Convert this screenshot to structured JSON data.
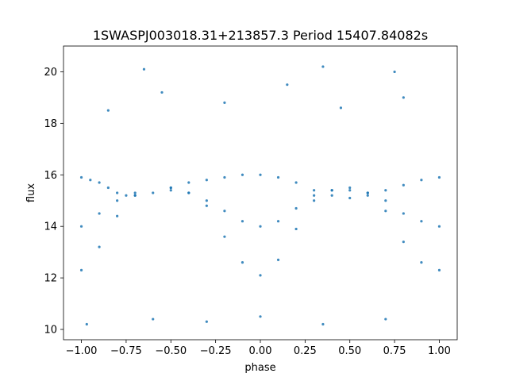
{
  "chart_data": {
    "type": "scatter",
    "title": "1SWASPJ003018.31+213857.3 Period 15407.84082s",
    "xlabel": "phase",
    "ylabel": "flux",
    "xlim": [
      -1.1,
      1.1
    ],
    "ylim": [
      9.6,
      21.0
    ],
    "xticks": [
      -1.0,
      -0.75,
      -0.5,
      -0.25,
      0.0,
      0.25,
      0.5,
      0.75,
      1.0
    ],
    "xtick_labels": [
      "−1.00",
      "−0.75",
      "−0.50",
      "−0.25",
      "0.00",
      "0.25",
      "0.50",
      "0.75",
      "1.00"
    ],
    "yticks": [
      10,
      12,
      14,
      16,
      18,
      20
    ],
    "ytick_labels": [
      "10",
      "12",
      "14",
      "16",
      "18",
      "20"
    ],
    "grid": false,
    "marker_color": "#1f77b4",
    "series": [
      {
        "points": [
          [
            -1.0,
            15.9
          ],
          [
            -0.95,
            15.8
          ],
          [
            -0.9,
            15.7
          ],
          [
            -0.85,
            15.5
          ],
          [
            -0.8,
            15.3
          ],
          [
            -0.75,
            15.2
          ],
          [
            -0.7,
            15.2
          ],
          [
            -0.6,
            15.3
          ],
          [
            -0.5,
            15.5
          ],
          [
            -0.4,
            15.7
          ],
          [
            -0.3,
            15.8
          ],
          [
            -0.2,
            15.9
          ],
          [
            -0.1,
            16.0
          ],
          [
            0.0,
            16.0
          ],
          [
            0.1,
            15.9
          ],
          [
            0.2,
            15.7
          ],
          [
            0.3,
            15.4
          ],
          [
            0.4,
            15.2
          ],
          [
            0.5,
            15.1
          ],
          [
            0.6,
            15.2
          ],
          [
            0.7,
            15.4
          ],
          [
            0.8,
            15.6
          ],
          [
            0.9,
            15.8
          ],
          [
            1.0,
            15.9
          ],
          [
            -1.0,
            14.0
          ],
          [
            -0.9,
            14.5
          ],
          [
            -0.8,
            15.0
          ],
          [
            -0.7,
            15.3
          ],
          [
            -0.5,
            15.4
          ],
          [
            -0.4,
            15.3
          ],
          [
            -0.3,
            15.0
          ],
          [
            -0.2,
            14.6
          ],
          [
            -0.1,
            14.2
          ],
          [
            0.0,
            14.0
          ],
          [
            0.1,
            14.2
          ],
          [
            0.2,
            14.7
          ],
          [
            0.3,
            15.2
          ],
          [
            0.4,
            15.4
          ],
          [
            0.5,
            15.4
          ],
          [
            0.6,
            15.3
          ],
          [
            0.7,
            15.0
          ],
          [
            0.8,
            14.5
          ],
          [
            0.9,
            14.2
          ],
          [
            1.0,
            14.0
          ],
          [
            -1.0,
            12.3
          ],
          [
            -0.9,
            13.2
          ],
          [
            -0.8,
            14.4
          ],
          [
            -0.7,
            15.2
          ],
          [
            -0.5,
            15.5
          ],
          [
            -0.4,
            15.3
          ],
          [
            -0.3,
            14.8
          ],
          [
            -0.2,
            13.6
          ],
          [
            -0.1,
            12.6
          ],
          [
            0.0,
            12.1
          ],
          [
            0.1,
            12.7
          ],
          [
            0.2,
            13.9
          ],
          [
            0.3,
            15.0
          ],
          [
            0.4,
            15.4
          ],
          [
            0.5,
            15.5
          ],
          [
            0.6,
            15.3
          ],
          [
            0.7,
            14.6
          ],
          [
            0.8,
            13.4
          ],
          [
            0.9,
            12.6
          ],
          [
            1.0,
            12.3
          ],
          [
            -0.97,
            10.2
          ],
          [
            -0.6,
            10.4
          ],
          [
            -0.3,
            10.3
          ],
          [
            0.0,
            10.5
          ],
          [
            0.35,
            10.2
          ],
          [
            0.7,
            10.4
          ],
          [
            -0.85,
            18.5
          ],
          [
            -0.55,
            19.2
          ],
          [
            -0.2,
            18.8
          ],
          [
            0.15,
            19.5
          ],
          [
            0.45,
            18.6
          ],
          [
            0.8,
            19.0
          ],
          [
            -0.65,
            20.1
          ],
          [
            0.35,
            20.2
          ],
          [
            0.75,
            20.0
          ]
        ]
      }
    ]
  }
}
